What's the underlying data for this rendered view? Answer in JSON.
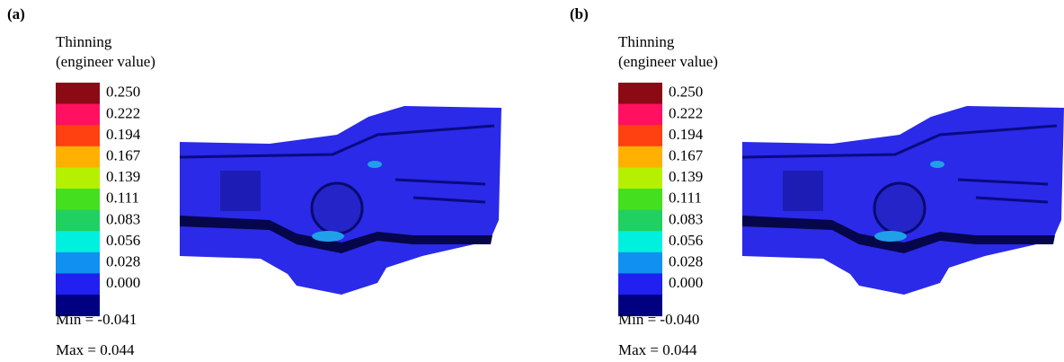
{
  "panels": [
    {
      "label": "(a)",
      "legend_title": [
        "Thinning",
        "(engineer value)"
      ],
      "legend_labels": [
        "0.250",
        "0.222",
        "0.194",
        "0.167",
        "0.139",
        "0.111",
        "0.083",
        "0.056",
        "0.028",
        "0.000"
      ],
      "colors": [
        "#8b0a14",
        "#ff1060",
        "#ff4010",
        "#ffb000",
        "#b4f000",
        "#44e020",
        "#20d060",
        "#00f0e0",
        "#1090f0",
        "#2020f0",
        "#000080"
      ],
      "min": "Min = -0.041",
      "max": "Max = 0.044"
    },
    {
      "label": "(b)",
      "legend_title": [
        "Thinning",
        "(engineer value)"
      ],
      "legend_labels": [
        "0.250",
        "0.222",
        "0.194",
        "0.167",
        "0.139",
        "0.111",
        "0.083",
        "0.056",
        "0.028",
        "0.000"
      ],
      "colors": [
        "#8b0a14",
        "#ff1060",
        "#ff4010",
        "#ffb000",
        "#b4f000",
        "#44e020",
        "#20d060",
        "#00f0e0",
        "#1090f0",
        "#2020f0",
        "#000080"
      ],
      "min": "Min = -0.040",
      "max": "Max = 0.044"
    }
  ]
}
